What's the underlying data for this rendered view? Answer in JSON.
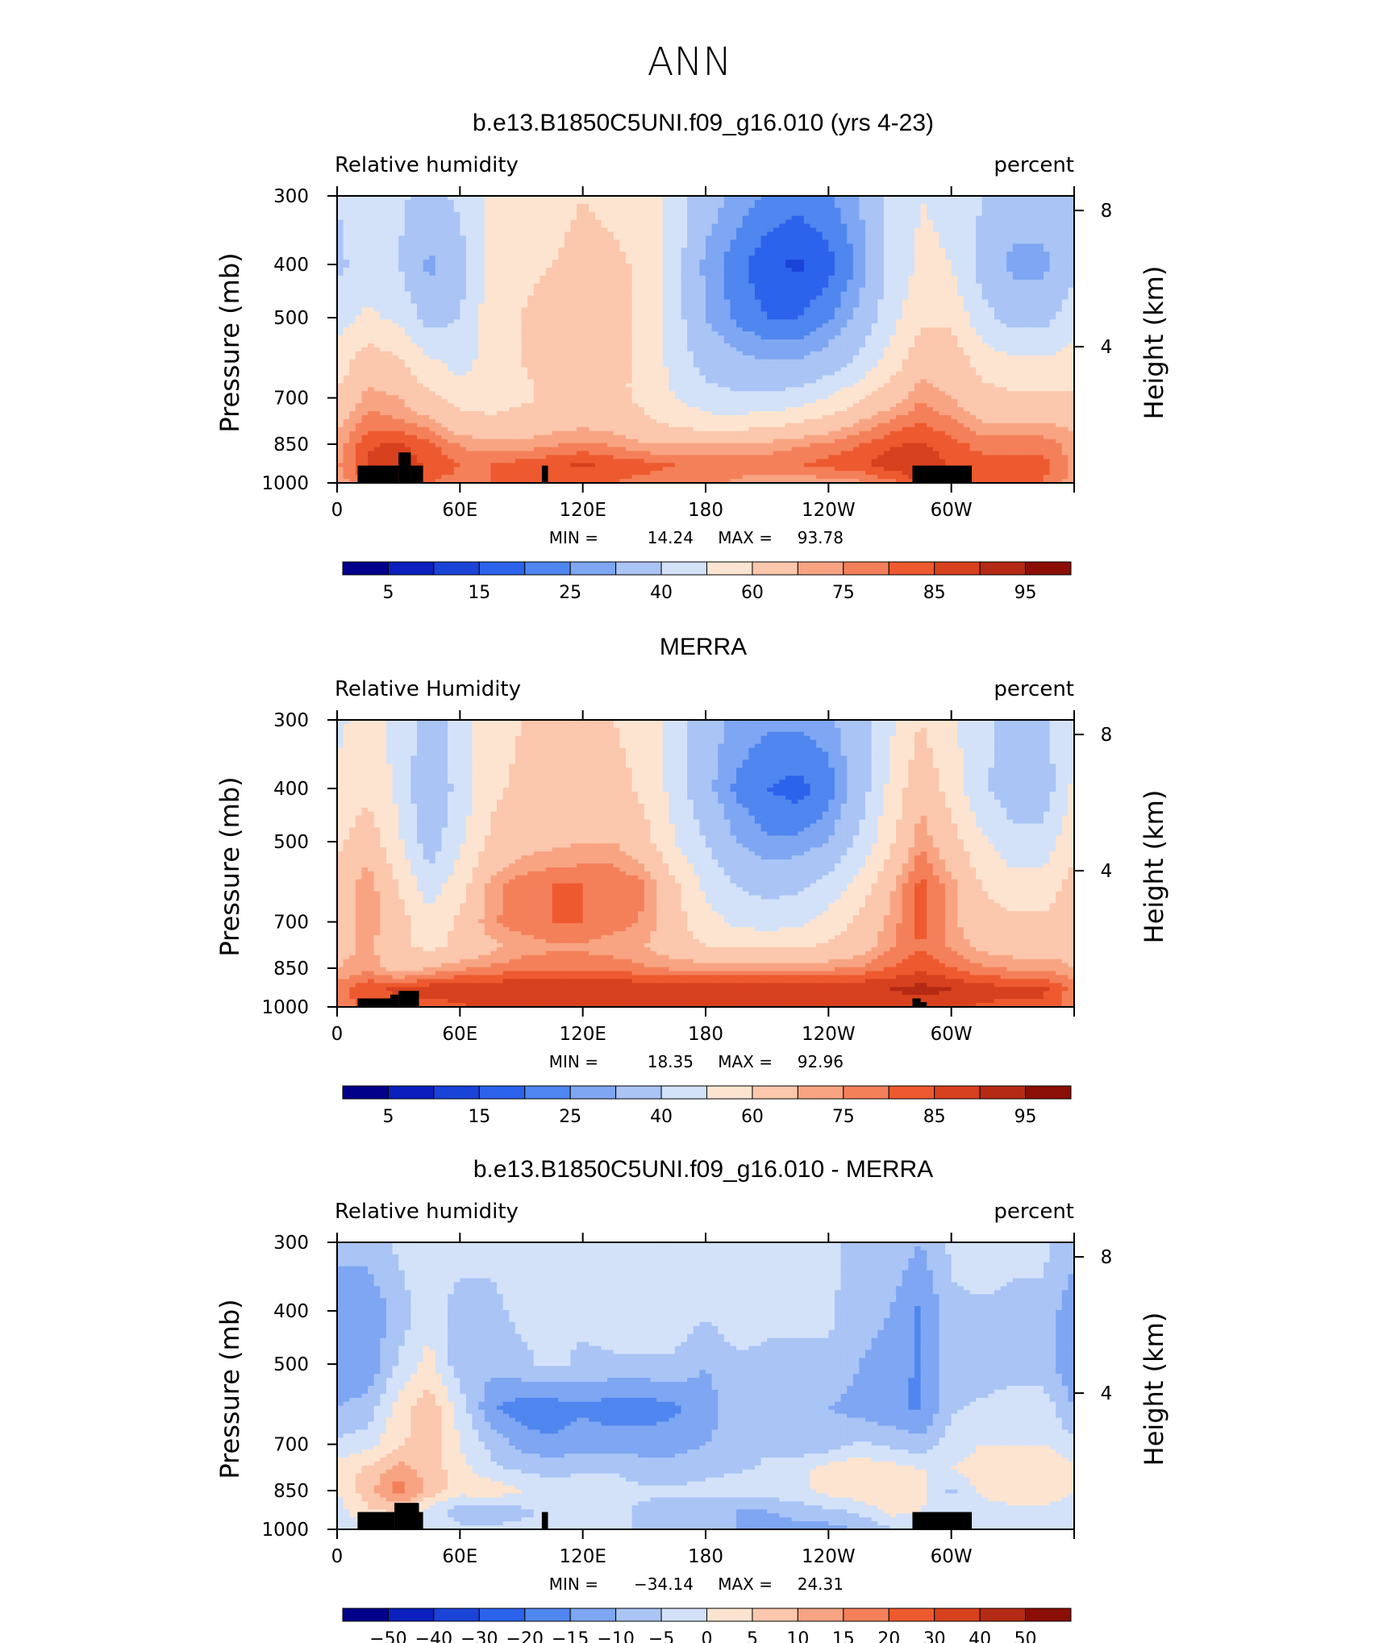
{
  "main_title": "ANN",
  "colors": {
    "rh_levels": [
      "#00008b",
      "#0a1fbd",
      "#1a43d8",
      "#2b63ec",
      "#4f86ef",
      "#7ea6f2",
      "#a9c4f5",
      "#d3e2f9",
      "#fde4d0",
      "#fbc7ad",
      "#f8a482",
      "#f4805a",
      "#ee5a2f",
      "#d8411e",
      "#b52a14",
      "#8b0f07"
    ],
    "diff_levels": [
      "#00008b",
      "#0a1fbd",
      "#1a43d8",
      "#2b63ec",
      "#4f86ef",
      "#7ea6f2",
      "#a9c4f5",
      "#d3e2f9",
      "#fde4d0",
      "#fbc7ad",
      "#f8a482",
      "#f4805a",
      "#ee5a2f",
      "#d8411e",
      "#b52a14",
      "#8b0f07"
    ],
    "terrain": "#000000"
  },
  "panels": [
    {
      "title": "b.e13.B1850C5UNI.f09_g16.010 (yrs 4-23)",
      "left_label": "Relative humidity",
      "right_label": "percent",
      "min_label": "MIN =",
      "min_value": "14.24",
      "max_label": "MAX =",
      "max_value": "93.78",
      "colorbar_labels": [
        "5",
        "15",
        "25",
        "40",
        "60",
        "75",
        "85",
        "95"
      ]
    },
    {
      "title": "MERRA",
      "left_label": "Relative Humidity",
      "right_label": "percent",
      "min_label": "MIN =",
      "min_value": "18.35",
      "max_label": "MAX =",
      "max_value": "92.96",
      "colorbar_labels": [
        "5",
        "15",
        "25",
        "40",
        "60",
        "75",
        "85",
        "95"
      ]
    },
    {
      "title": "b.e13.B1850C5UNI.f09_g16.010 - MERRA",
      "left_label": "Relative humidity",
      "right_label": "percent",
      "min_label": "MIN =",
      "min_value": "−34.14",
      "max_label": "MAX =",
      "max_value": "24.31",
      "colorbar_labels": [
        "−50",
        "−40",
        "−30",
        "−20",
        "−15",
        "−10",
        "−5",
        "0",
        "5",
        "10",
        "15",
        "20",
        "30",
        "40",
        "50"
      ]
    }
  ],
  "chart_data": [
    {
      "type": "heatmap",
      "title": "b.e13.B1850C5UNI.f09_g16.010 (yrs 4-23)",
      "xlabel": "",
      "ylabel": "Pressure (mb)",
      "y2label": "Height (km)",
      "x_ticks": [
        "0",
        "60E",
        "120E",
        "180",
        "120W",
        "60W"
      ],
      "x_tick_values": [
        0,
        60,
        120,
        180,
        240,
        300
      ],
      "xlim": [
        0,
        360
      ],
      "y_ticks": [
        "300",
        "400",
        "500",
        "700",
        "850",
        "1000"
      ],
      "y_tick_values": [
        300,
        400,
        500,
        700,
        850,
        1000
      ],
      "ylim": [
        1000,
        300
      ],
      "y_scale": "log",
      "y2_ticks": [
        "4",
        "8"
      ],
      "y2_tick_values": [
        4,
        8
      ],
      "contour_levels": [
        5,
        10,
        15,
        20,
        25,
        30,
        40,
        50,
        60,
        70,
        75,
        80,
        85,
        90,
        95
      ],
      "x": [
        0,
        15,
        30,
        45,
        60,
        75,
        90,
        105,
        120,
        135,
        150,
        165,
        180,
        195,
        210,
        225,
        240,
        255,
        270,
        285,
        300,
        315,
        330,
        345,
        360
      ],
      "y": [
        1000,
        925,
        850,
        775,
        700,
        600,
        500,
        400,
        300
      ],
      "z": [
        [
          72,
          80,
          82,
          80,
          78,
          80,
          80,
          80,
          82,
          80,
          78,
          78,
          76,
          74,
          72,
          72,
          72,
          74,
          78,
          86,
          84,
          80,
          80,
          80,
          72
        ],
        [
          74,
          86,
          88,
          84,
          80,
          80,
          82,
          84,
          86,
          84,
          82,
          80,
          80,
          78,
          78,
          80,
          82,
          84,
          88,
          90,
          84,
          82,
          82,
          82,
          74
        ],
        [
          72,
          84,
          86,
          82,
          74,
          72,
          72,
          74,
          76,
          74,
          70,
          70,
          70,
          72,
          72,
          74,
          76,
          80,
          84,
          86,
          82,
          78,
          78,
          78,
          72
        ],
        [
          68,
          78,
          76,
          72,
          64,
          62,
          64,
          66,
          68,
          66,
          62,
          58,
          54,
          54,
          56,
          60,
          64,
          70,
          76,
          80,
          76,
          70,
          70,
          70,
          68
        ],
        [
          62,
          72,
          70,
          62,
          56,
          56,
          58,
          62,
          62,
          62,
          58,
          50,
          44,
          42,
          42,
          44,
          50,
          58,
          66,
          74,
          70,
          64,
          62,
          62,
          62
        ],
        [
          54,
          66,
          62,
          52,
          46,
          54,
          60,
          62,
          64,
          62,
          58,
          46,
          36,
          32,
          30,
          30,
          34,
          42,
          54,
          66,
          66,
          56,
          52,
          52,
          54
        ],
        [
          46,
          52,
          48,
          36,
          40,
          56,
          60,
          64,
          64,
          64,
          58,
          44,
          30,
          24,
          20,
          20,
          24,
          32,
          46,
          58,
          58,
          44,
          36,
          36,
          46
        ],
        [
          38,
          44,
          40,
          28,
          36,
          52,
          58,
          60,
          62,
          62,
          58,
          44,
          28,
          22,
          16,
          14,
          18,
          26,
          42,
          52,
          50,
          36,
          28,
          28,
          38
        ],
        [
          40,
          46,
          42,
          36,
          42,
          52,
          56,
          58,
          60,
          58,
          54,
          46,
          34,
          28,
          24,
          22,
          24,
          30,
          42,
          50,
          48,
          40,
          34,
          34,
          40
        ]
      ]
    },
    {
      "type": "heatmap",
      "title": "MERRA",
      "xlabel": "",
      "ylabel": "Pressure (mb)",
      "y2label": "Height (km)",
      "x_ticks": [
        "0",
        "60E",
        "120E",
        "180",
        "120W",
        "60W"
      ],
      "x_tick_values": [
        0,
        60,
        120,
        180,
        240,
        300
      ],
      "xlim": [
        0,
        360
      ],
      "y_ticks": [
        "300",
        "400",
        "500",
        "700",
        "850",
        "1000"
      ],
      "y_tick_values": [
        300,
        400,
        500,
        700,
        850,
        1000
      ],
      "ylim": [
        1000,
        300
      ],
      "y_scale": "log",
      "y2_ticks": [
        "4",
        "8"
      ],
      "y2_tick_values": [
        4,
        8
      ],
      "contour_levels": [
        5,
        10,
        15,
        20,
        25,
        30,
        40,
        50,
        60,
        70,
        75,
        80,
        85,
        90,
        95
      ],
      "x": [
        0,
        15,
        30,
        45,
        60,
        75,
        90,
        105,
        120,
        135,
        150,
        165,
        180,
        195,
        210,
        225,
        240,
        255,
        270,
        285,
        300,
        315,
        330,
        345,
        360
      ],
      "y": [
        1000,
        925,
        850,
        775,
        700,
        600,
        500,
        400,
        300
      ],
      "z": [
        [
          76,
          82,
          84,
          82,
          84,
          86,
          86,
          86,
          86,
          86,
          86,
          86,
          86,
          86,
          86,
          86,
          86,
          86,
          86,
          88,
          86,
          84,
          84,
          84,
          76
        ],
        [
          78,
          84,
          86,
          88,
          90,
          90,
          90,
          90,
          90,
          90,
          90,
          90,
          90,
          90,
          90,
          90,
          90,
          90,
          90,
          92,
          90,
          88,
          86,
          86,
          78
        ],
        [
          70,
          74,
          66,
          70,
          74,
          76,
          78,
          78,
          78,
          78,
          76,
          74,
          74,
          74,
          74,
          74,
          74,
          76,
          80,
          84,
          80,
          76,
          74,
          74,
          70
        ],
        [
          66,
          72,
          62,
          58,
          62,
          68,
          72,
          74,
          74,
          72,
          70,
          64,
          60,
          58,
          58,
          58,
          62,
          66,
          74,
          80,
          74,
          68,
          66,
          66,
          66
        ],
        [
          66,
          74,
          64,
          54,
          62,
          74,
          78,
          80,
          80,
          78,
          74,
          64,
          54,
          48,
          46,
          48,
          54,
          62,
          72,
          82,
          72,
          64,
          62,
          62,
          66
        ],
        [
          64,
          74,
          60,
          44,
          56,
          72,
          78,
          80,
          80,
          80,
          76,
          62,
          48,
          40,
          36,
          38,
          44,
          54,
          68,
          82,
          72,
          60,
          54,
          54,
          64
        ],
        [
          58,
          66,
          52,
          34,
          48,
          62,
          66,
          68,
          70,
          70,
          64,
          50,
          40,
          30,
          26,
          26,
          30,
          42,
          58,
          74,
          64,
          52,
          44,
          44,
          58
        ],
        [
          52,
          58,
          48,
          30,
          44,
          58,
          62,
          64,
          66,
          64,
          58,
          46,
          32,
          24,
          20,
          18,
          22,
          34,
          52,
          68,
          56,
          42,
          34,
          34,
          52
        ],
        [
          48,
          54,
          46,
          36,
          44,
          56,
          60,
          60,
          62,
          60,
          56,
          46,
          34,
          28,
          26,
          26,
          28,
          36,
          48,
          60,
          52,
          42,
          38,
          38,
          48
        ]
      ]
    },
    {
      "type": "heatmap",
      "title": "b.e13.B1850C5UNI.f09_g16.010 - MERRA",
      "xlabel": "",
      "ylabel": "Pressure (mb)",
      "y2label": "Height (km)",
      "x_ticks": [
        "0",
        "60E",
        "120E",
        "180",
        "120W",
        "60W"
      ],
      "x_tick_values": [
        0,
        60,
        120,
        180,
        240,
        300
      ],
      "xlim": [
        0,
        360
      ],
      "y_ticks": [
        "300",
        "400",
        "500",
        "700",
        "850",
        "1000"
      ],
      "y_tick_values": [
        300,
        400,
        500,
        700,
        850,
        1000
      ],
      "ylim": [
        1000,
        300
      ],
      "y_scale": "log",
      "y2_ticks": [
        "4",
        "8"
      ],
      "y2_tick_values": [
        4,
        8
      ],
      "contour_levels": [
        -50,
        -40,
        -30,
        -20,
        -15,
        -10,
        -5,
        0,
        5,
        10,
        15,
        20,
        30,
        40,
        50
      ],
      "x": [
        0,
        15,
        30,
        45,
        60,
        75,
        90,
        105,
        120,
        135,
        150,
        165,
        180,
        195,
        210,
        225,
        240,
        255,
        270,
        285,
        300,
        315,
        330,
        345,
        360
      ],
      "y": [
        1000,
        925,
        850,
        775,
        700,
        600,
        500,
        400,
        300
      ],
      "z": [
        [
          -4,
          -2,
          -2,
          -2,
          -4,
          -4,
          -4,
          -4,
          -2,
          -4,
          -6,
          -6,
          -8,
          -10,
          -12,
          -12,
          -12,
          -10,
          -6,
          -2,
          -2,
          -2,
          -2,
          -2,
          -4
        ],
        [
          -2,
          4,
          6,
          -2,
          -8,
          -8,
          -6,
          -4,
          -2,
          -4,
          -6,
          -8,
          -8,
          -10,
          -10,
          -8,
          -6,
          -4,
          2,
          0,
          -4,
          -4,
          -2,
          -2,
          -2
        ],
        [
          0,
          8,
          18,
          8,
          2,
          4,
          0,
          -4,
          -2,
          -2,
          -4,
          -4,
          -4,
          -2,
          -2,
          -2,
          2,
          4,
          4,
          2,
          -6,
          2,
          4,
          4,
          0
        ],
        [
          2,
          6,
          12,
          8,
          2,
          -4,
          -6,
          -6,
          -6,
          -6,
          -8,
          -8,
          -6,
          -6,
          -4,
          -2,
          2,
          4,
          2,
          0,
          0,
          2,
          4,
          4,
          2
        ],
        [
          -4,
          -2,
          4,
          8,
          0,
          -6,
          -12,
          -14,
          -12,
          -12,
          -12,
          -12,
          -10,
          -8,
          -6,
          -8,
          -8,
          -4,
          -6,
          -8,
          -2,
          0,
          0,
          0,
          -4
        ],
        [
          -10,
          -8,
          2,
          8,
          -2,
          -14,
          -18,
          -18,
          -16,
          -18,
          -18,
          -16,
          -12,
          -8,
          -6,
          -8,
          -10,
          -12,
          -14,
          -16,
          -6,
          -4,
          -2,
          -2,
          -10
        ],
        [
          -14,
          -14,
          -4,
          2,
          -8,
          -8,
          -6,
          -4,
          -6,
          -6,
          -6,
          -6,
          -10,
          -6,
          -6,
          -6,
          -6,
          -10,
          -12,
          -16,
          -6,
          -8,
          -8,
          -8,
          -14
        ],
        [
          -14,
          -14,
          -8,
          -2,
          -8,
          -6,
          -4,
          -4,
          -4,
          -2,
          0,
          -2,
          -4,
          -2,
          -4,
          -4,
          -4,
          -8,
          -10,
          -16,
          -6,
          -6,
          -6,
          -6,
          -14
        ],
        [
          -8,
          -8,
          -4,
          0,
          -2,
          -4,
          -4,
          -2,
          -2,
          -2,
          -2,
          0,
          0,
          0,
          -2,
          -4,
          -4,
          -6,
          -6,
          -10,
          -4,
          -2,
          -4,
          -4,
          -8
        ]
      ]
    }
  ],
  "terrain_masks": [
    [
      [
        10,
        30,
        930
      ],
      [
        30,
        36,
        880
      ],
      [
        36,
        42,
        930
      ],
      [
        100,
        103,
        930
      ],
      [
        281,
        310,
        930
      ]
    ],
    [
      [
        10,
        26,
        965
      ],
      [
        26,
        30,
        950
      ],
      [
        30,
        40,
        935
      ],
      [
        281,
        285,
        965
      ],
      [
        285,
        288,
        980
      ]
    ],
    [
      [
        10,
        28,
        930
      ],
      [
        28,
        40,
        895
      ],
      [
        40,
        42,
        930
      ],
      [
        100,
        103,
        930
      ],
      [
        281,
        310,
        930
      ]
    ]
  ]
}
